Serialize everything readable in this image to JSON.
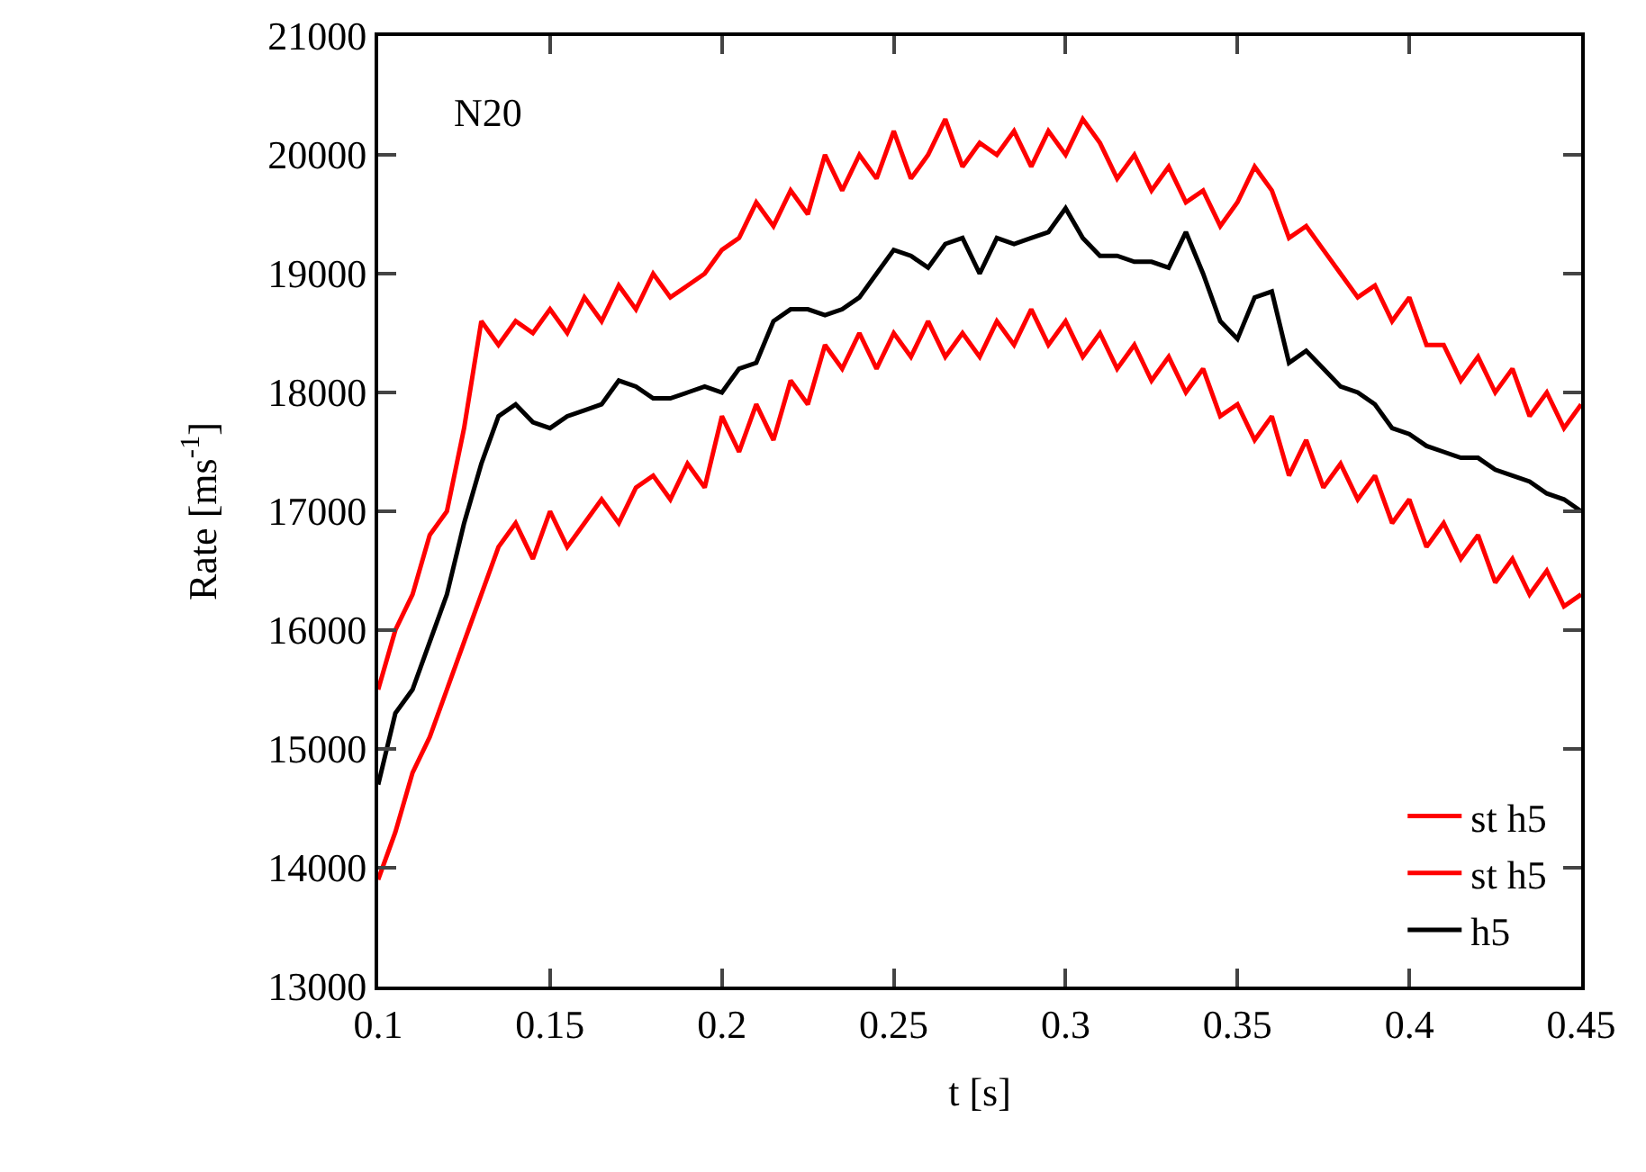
{
  "chart_data": {
    "type": "line",
    "xlabel": "t [s]",
    "ylabel": "Rate [ms$^{-1}$]",
    "annotations": [
      "N20"
    ],
    "x": [
      0.1,
      0.105,
      0.11,
      0.115,
      0.12,
      0.125,
      0.13,
      0.135,
      0.14,
      0.145,
      0.15,
      0.155,
      0.16,
      0.165,
      0.17,
      0.175,
      0.18,
      0.185,
      0.19,
      0.195,
      0.2,
      0.205,
      0.21,
      0.215,
      0.22,
      0.225,
      0.23,
      0.235,
      0.24,
      0.245,
      0.25,
      0.255,
      0.26,
      0.265,
      0.27,
      0.275,
      0.28,
      0.285,
      0.29,
      0.295,
      0.3,
      0.305,
      0.31,
      0.315,
      0.32,
      0.325,
      0.33,
      0.335,
      0.34,
      0.345,
      0.35,
      0.355,
      0.36,
      0.365,
      0.37,
      0.375,
      0.38,
      0.385,
      0.39,
      0.395,
      0.4,
      0.405,
      0.41,
      0.415,
      0.42,
      0.425,
      0.43,
      0.435,
      0.44,
      0.445,
      0.45
    ],
    "series": [
      {
        "name": "st h5",
        "color": "#ff0000",
        "values": [
          15500,
          16000,
          16300,
          16800,
          17000,
          17700,
          18600,
          18400,
          18600,
          18500,
          18700,
          18500,
          18800,
          18600,
          18900,
          18700,
          19000,
          18800,
          18900,
          19000,
          19200,
          19300,
          19600,
          19400,
          19700,
          19500,
          20000,
          19700,
          20000,
          19800,
          20200,
          19800,
          20000,
          20300,
          19900,
          20100,
          20000,
          20200,
          19900,
          20200,
          20000,
          20300,
          20100,
          19800,
          20000,
          19700,
          19900,
          19600,
          19700,
          19400,
          19600,
          19900,
          19700,
          19300,
          19400,
          19200,
          19000,
          18800,
          18900,
          18600,
          18800,
          18400,
          18400,
          18100,
          18300,
          18000,
          18200,
          17800,
          18000,
          17700,
          17900
        ]
      },
      {
        "name": "st h5",
        "color": "#ff0000",
        "values": [
          13900,
          14300,
          14800,
          15100,
          15500,
          15900,
          16300,
          16700,
          16900,
          16600,
          17000,
          16700,
          16900,
          17100,
          16900,
          17200,
          17300,
          17100,
          17400,
          17200,
          17800,
          17500,
          17900,
          17600,
          18100,
          17900,
          18400,
          18200,
          18500,
          18200,
          18500,
          18300,
          18600,
          18300,
          18500,
          18300,
          18600,
          18400,
          18700,
          18400,
          18600,
          18300,
          18500,
          18200,
          18400,
          18100,
          18300,
          18000,
          18200,
          17800,
          17900,
          17600,
          17800,
          17300,
          17600,
          17200,
          17400,
          17100,
          17300,
          16900,
          17100,
          16700,
          16900,
          16600,
          16800,
          16400,
          16600,
          16300,
          16500,
          16200,
          16300
        ]
      },
      {
        "name": "h5",
        "color": "#000000",
        "values": [
          14700,
          15300,
          15500,
          15900,
          16300,
          16900,
          17400,
          17800,
          17900,
          17750,
          17700,
          17800,
          17850,
          17900,
          18100,
          18050,
          17950,
          17950,
          18000,
          18050,
          18000,
          18200,
          18250,
          18600,
          18700,
          18700,
          18650,
          18700,
          18800,
          19000,
          19200,
          19150,
          19050,
          19250,
          19300,
          19000,
          19300,
          19250,
          19300,
          19350,
          19550,
          19300,
          19150,
          19150,
          19100,
          19100,
          19050,
          19350,
          19000,
          18600,
          18450,
          18800,
          18850,
          18250,
          18350,
          18200,
          18050,
          18000,
          17900,
          17700,
          17650,
          17550,
          17500,
          17450,
          17450,
          17350,
          17300,
          17250,
          17150,
          17100,
          17000
        ]
      }
    ],
    "xlim": [
      0.1,
      0.45
    ],
    "xticks": [
      0.1,
      0.15,
      0.2,
      0.25,
      0.3,
      0.35,
      0.4,
      0.45
    ],
    "ylim": [
      13000,
      21000
    ],
    "yticks": [
      13000,
      14000,
      15000,
      16000,
      17000,
      18000,
      19000,
      20000,
      21000
    ],
    "grid": false,
    "legend": "bottom right",
    "line_style": "solid",
    "marker": "none"
  }
}
